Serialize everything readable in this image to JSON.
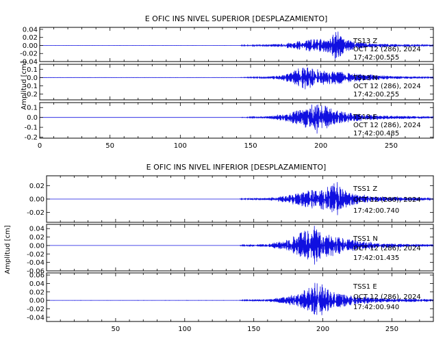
{
  "chart_data": [
    {
      "type": "line",
      "title": "E OFIC INS NIVEL SUPERIOR [DESPLAZAMIENTO]",
      "ylabel": "Amplitud [cm]",
      "xlim": [
        0,
        280
      ],
      "xticks": [
        0,
        50,
        100,
        150,
        200,
        250
      ],
      "show_x_tick_labels": true,
      "series": [
        {
          "name": "TS13 Z",
          "date": "OCT 12 (286), 2024",
          "time": "17:42:00.555",
          "ylim": [
            -0.04,
            0.045
          ],
          "yticks": [
            -0.04,
            -0.02,
            0.0,
            0.02,
            0.04
          ],
          "ytick_labels": [
            "-0.04",
            "-0.02",
            "0.00",
            "0.02",
            "0.04"
          ],
          "onset": 143,
          "envelope": [
            [
              143,
              0.001
            ],
            [
              160,
              0.002
            ],
            [
              175,
              0.006
            ],
            [
              185,
              0.012
            ],
            [
              193,
              0.016
            ],
            [
              200,
              0.017
            ],
            [
              206,
              0.018
            ],
            [
              211,
              0.04
            ],
            [
              216,
              0.02
            ],
            [
              225,
              0.01
            ],
            [
              240,
              0.005
            ],
            [
              260,
              0.003
            ],
            [
              280,
              0.002
            ]
          ]
        },
        {
          "name": "TS13 N",
          "date": "OCT 12 (286), 2024",
          "time": "17:42:00.255",
          "ylim": [
            -0.27,
            0.16
          ],
          "yticks": [
            -0.2,
            -0.1,
            0.0,
            0.1
          ],
          "ytick_labels": [
            "-0.2",
            "-0.1",
            "0.0",
            "0.1"
          ],
          "onset": 143,
          "envelope": [
            [
              143,
              0.002
            ],
            [
              160,
              0.01
            ],
            [
              172,
              0.03
            ],
            [
              182,
              0.09
            ],
            [
              188,
              0.16
            ],
            [
              194,
              0.12
            ],
            [
              200,
              0.1
            ],
            [
              210,
              0.09
            ],
            [
              222,
              0.06
            ],
            [
              240,
              0.03
            ],
            [
              260,
              0.015
            ],
            [
              280,
              0.01
            ]
          ]
        },
        {
          "name": "TS13 E",
          "date": "OCT 12 (286), 2024",
          "time": "17:42:00.485",
          "ylim": [
            -0.21,
            0.15
          ],
          "yticks": [
            -0.2,
            -0.1,
            0.0,
            0.1
          ],
          "ytick_labels": [
            "-0.2",
            "-0.1",
            "0.0",
            "0.1"
          ],
          "onset": 143,
          "envelope": [
            [
              143,
              0.002
            ],
            [
              160,
              0.01
            ],
            [
              175,
              0.04
            ],
            [
              185,
              0.09
            ],
            [
              192,
              0.12
            ],
            [
              197,
              0.19
            ],
            [
              203,
              0.13
            ],
            [
              212,
              0.07
            ],
            [
              225,
              0.04
            ],
            [
              245,
              0.02
            ],
            [
              280,
              0.01
            ]
          ]
        }
      ]
    },
    {
      "type": "line",
      "title": "E OFIC INS NIVEL INFERIOR [DESPLAZAMIENTO]",
      "ylabel": "Amplitud [cm]",
      "xlim": [
        0,
        280
      ],
      "xticks": [
        50,
        100,
        150,
        200,
        250
      ],
      "show_x_tick_labels": true,
      "series": [
        {
          "name": "TSS1 Z",
          "date": "OCT 12 (286), 2024",
          "time": "17:42:00.740",
          "ylim": [
            -0.035,
            0.035
          ],
          "yticks": [
            -0.02,
            0.0,
            0.02
          ],
          "ytick_labels": [
            "-0.02",
            "0.00",
            "0.02"
          ],
          "onset": 140,
          "envelope": [
            [
              140,
              0.0008
            ],
            [
              160,
              0.002
            ],
            [
              175,
              0.006
            ],
            [
              185,
              0.012
            ],
            [
              195,
              0.016
            ],
            [
              203,
              0.018
            ],
            [
              211,
              0.03
            ],
            [
              216,
              0.014
            ],
            [
              225,
              0.008
            ],
            [
              240,
              0.004
            ],
            [
              260,
              0.003
            ],
            [
              280,
              0.002
            ]
          ]
        },
        {
          "name": "TSS1 N",
          "date": "OCT 12 (286), 2024",
          "time": "17:42:01.435",
          "ylim": [
            -0.06,
            0.05
          ],
          "yticks": [
            -0.06,
            -0.04,
            -0.02,
            0.0,
            0.02,
            0.04
          ],
          "ytick_labels": [
            "-0.06",
            "-0.04",
            "-0.02",
            "0.00",
            "0.02",
            "0.04"
          ],
          "onset": 140,
          "envelope": [
            [
              140,
              0.001
            ],
            [
              160,
              0.004
            ],
            [
              172,
              0.012
            ],
            [
              182,
              0.028
            ],
            [
              188,
              0.045
            ],
            [
              193,
              0.05
            ],
            [
              200,
              0.035
            ],
            [
              210,
              0.022
            ],
            [
              222,
              0.014
            ],
            [
              240,
              0.007
            ],
            [
              260,
              0.004
            ],
            [
              280,
              0.003
            ]
          ]
        },
        {
          "name": "TSS1 E",
          "date": "OCT 12 (286), 2024",
          "time": "17:42:00.940",
          "ylim": [
            -0.05,
            0.065
          ],
          "yticks": [
            -0.04,
            -0.02,
            0.0,
            0.02,
            0.04,
            0.06
          ],
          "ytick_labels": [
            "-0.04",
            "-0.02",
            "0.00",
            "0.02",
            "0.04",
            "0.06"
          ],
          "onset": 140,
          "envelope": [
            [
              140,
              0.001
            ],
            [
              160,
              0.003
            ],
            [
              175,
              0.01
            ],
            [
              185,
              0.022
            ],
            [
              192,
              0.035
            ],
            [
              197,
              0.05
            ],
            [
              203,
              0.03
            ],
            [
              212,
              0.018
            ],
            [
              225,
              0.01
            ],
            [
              245,
              0.005
            ],
            [
              280,
              0.003
            ]
          ]
        }
      ]
    }
  ]
}
